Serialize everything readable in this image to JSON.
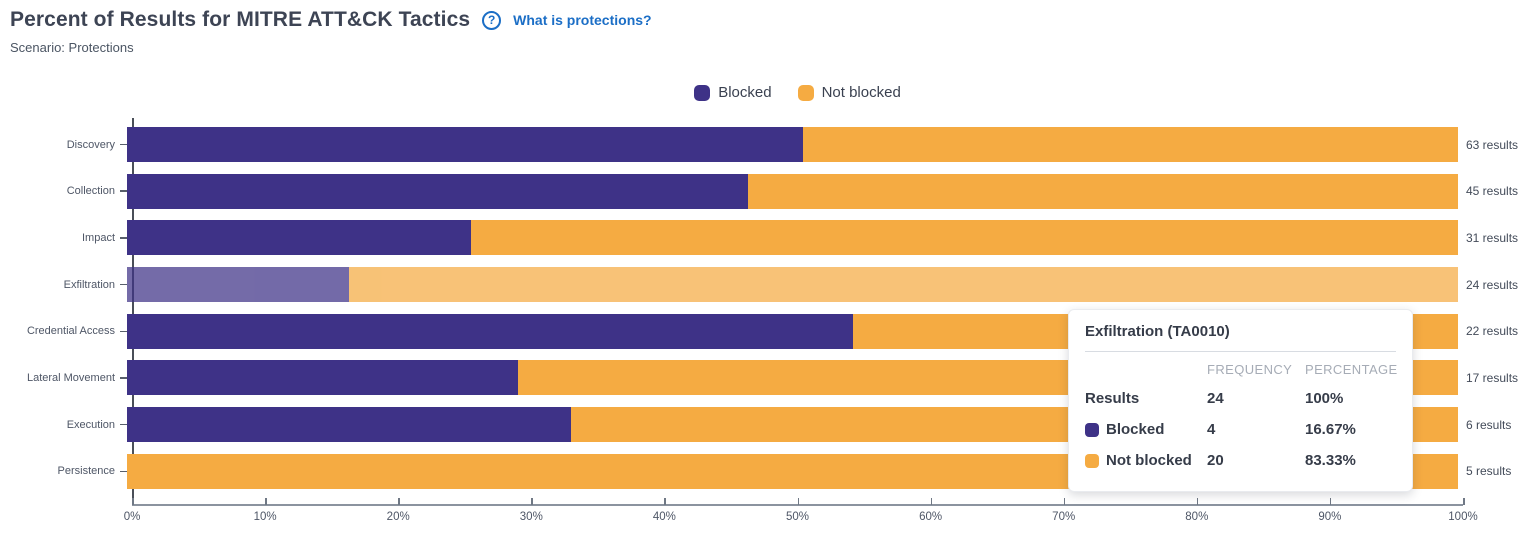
{
  "header": {
    "title": "Percent of Results for MITRE ATT&CK Tactics",
    "help_icon": "?",
    "help_link": "What is protections?",
    "subtitle": "Scenario: Protections"
  },
  "legend": [
    {
      "label": "Blocked",
      "color": "#3e3287"
    },
    {
      "label": "Not blocked",
      "color": "#f5ab42"
    }
  ],
  "chart_data": {
    "type": "bar",
    "orientation": "horizontal",
    "stacked": true,
    "title": "Percent of Results for MITRE ATT&CK Tactics",
    "xlabel": "",
    "ylabel": "",
    "xlim": [
      0,
      100
    ],
    "x_ticks": [
      "0%",
      "10%",
      "20%",
      "30%",
      "40%",
      "50%",
      "60%",
      "70%",
      "80%",
      "90%",
      "100%"
    ],
    "legend_position": "top-center",
    "categories": [
      "Discovery",
      "Collection",
      "Impact",
      "Exfiltration",
      "Credential Access",
      "Lateral Movement",
      "Execution",
      "Persistence"
    ],
    "series": [
      {
        "name": "Blocked",
        "color": "#3e3287",
        "values": [
          50.79,
          46.67,
          25.81,
          16.67,
          54.55,
          29.41,
          33.33,
          0
        ]
      },
      {
        "name": "Not blocked",
        "color": "#f5ab42",
        "values": [
          49.21,
          53.33,
          74.19,
          83.33,
          45.45,
          70.59,
          66.67,
          100
        ]
      }
    ],
    "results_labels": [
      "63 results",
      "45 results",
      "31 results",
      "24 results",
      "22 results",
      "17 results",
      "6 results",
      "5 results"
    ],
    "highlighted_category": "Exfiltration"
  },
  "tooltip": {
    "title": "Exfiltration (TA0010)",
    "columns": [
      "FREQUENCY",
      "PERCENTAGE"
    ],
    "rows": [
      {
        "label": "Results",
        "swatch": null,
        "frequency": "24",
        "percentage": "100%"
      },
      {
        "label": "Blocked",
        "swatch": "#3e3287",
        "frequency": "4",
        "percentage": "16.67%"
      },
      {
        "label": "Not blocked",
        "swatch": "#f5ab42",
        "frequency": "20",
        "percentage": "83.33%"
      }
    ]
  }
}
